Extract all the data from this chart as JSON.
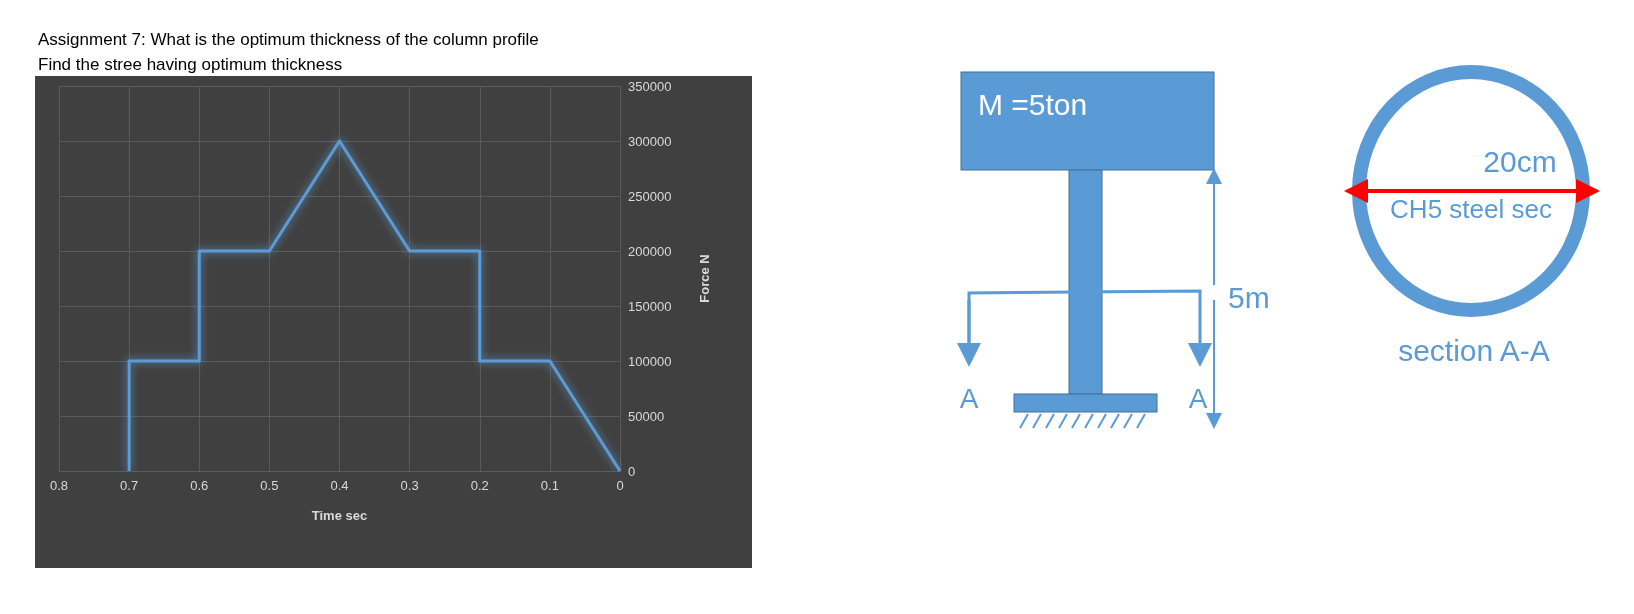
{
  "chart_data": {
    "type": "line",
    "title": "Assignment 7: What is the optimum thickness of the column profile",
    "subtitle": "Find the stree having optimum thickness",
    "xlabel": "Time sec",
    "ylabel": "Force N",
    "series": [
      {
        "color": "#5b9bd5",
        "x": [
          0.7,
          0.7,
          0.6,
          0.6,
          0.5,
          0.4,
          0.3,
          0.2,
          0.2,
          0.1,
          0
        ],
        "values": [
          0,
          100000,
          100000,
          200000,
          200000,
          300000,
          200000,
          200000,
          100000,
          100000,
          0
        ]
      }
    ],
    "xlim": [
      0.8,
      0
    ],
    "xticks": [
      0.8,
      0.7,
      0.6,
      0.5,
      0.4,
      0.3,
      0.2,
      0.1,
      0
    ],
    "ylim": [
      0,
      350000
    ],
    "yticks": [
      0,
      50000,
      100000,
      150000,
      200000,
      250000,
      300000,
      350000
    ],
    "grid": true,
    "marker": "none",
    "line_style": "solid",
    "annotations": [
      "M =5ton",
      "5m",
      "A",
      "A",
      "20cm",
      "CH5 steel sec",
      "section A-A"
    ]
  }
}
